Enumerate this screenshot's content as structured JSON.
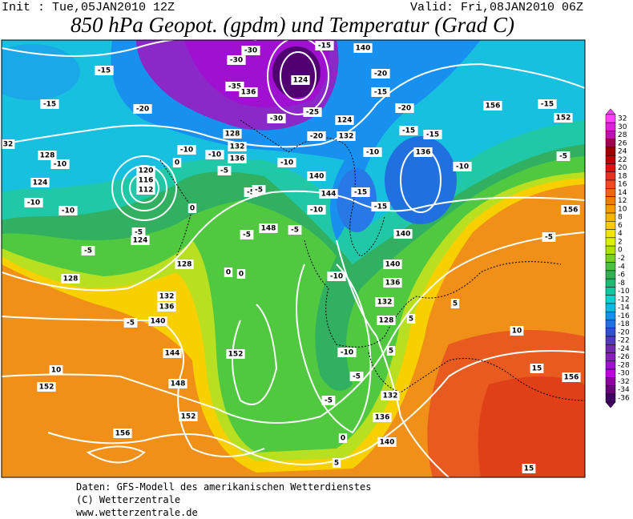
{
  "header": {
    "init": "Init : Tue,05JAN2010 12Z",
    "valid": "Valid: Fri,08JAN2010 06Z",
    "title": "850 hPa Geopot. (gpdm) und Temperatur (Grad C)"
  },
  "colorbar": {
    "labels": [
      "32",
      "30",
      "28",
      "26",
      "24",
      "22",
      "20",
      "18",
      "16",
      "14",
      "12",
      "10",
      "8",
      "6",
      "4",
      "2",
      "0",
      "-2",
      "-4",
      "-6",
      "-8",
      "-10",
      "-12",
      "-14",
      "-16",
      "-18",
      "-20",
      "-22",
      "-24",
      "-26",
      "-28",
      "-30",
      "-32",
      "-34",
      "-36"
    ]
  },
  "map": {
    "contour_labels": [
      "-30",
      "-30",
      "-35",
      "124",
      "136",
      "-30",
      "-25",
      "-20",
      "124",
      "140",
      "-15",
      "-20",
      "-15",
      "-20",
      "-15",
      "-15",
      "156",
      "-15",
      "152",
      "-5",
      "-10",
      "136",
      "132",
      "-10",
      "-15",
      "-15",
      "140",
      "140",
      "136",
      "132",
      "128",
      "-10",
      "-10",
      "-5",
      "132",
      "136",
      "140",
      "0",
      "5",
      "-5",
      "144",
      "140",
      "-10",
      "-10",
      "-5",
      "148",
      "-5",
      "-5",
      "-5",
      "0",
      "0",
      "-5",
      "136",
      "132",
      "128",
      "-10",
      "-10",
      "0",
      "0",
      "120",
      "116",
      "112",
      "124",
      "128",
      "-10",
      "-10",
      "-10",
      "-5",
      "124",
      "-5",
      "128",
      "128",
      "132",
      "136",
      "-5",
      "140",
      "144",
      "148",
      "152",
      "152",
      "10",
      "152",
      "156",
      "10",
      "15",
      "156",
      "5",
      "5",
      "5",
      "-5",
      "156",
      "15",
      "32",
      "-15",
      "-15",
      "-20"
    ]
  },
  "footer": {
    "lines": [
      "Daten: GFS-Modell des amerikanischen Wetterdienstes",
      "(C) Wetterzentrale",
      "www.wetterzentrale.de"
    ]
  }
}
